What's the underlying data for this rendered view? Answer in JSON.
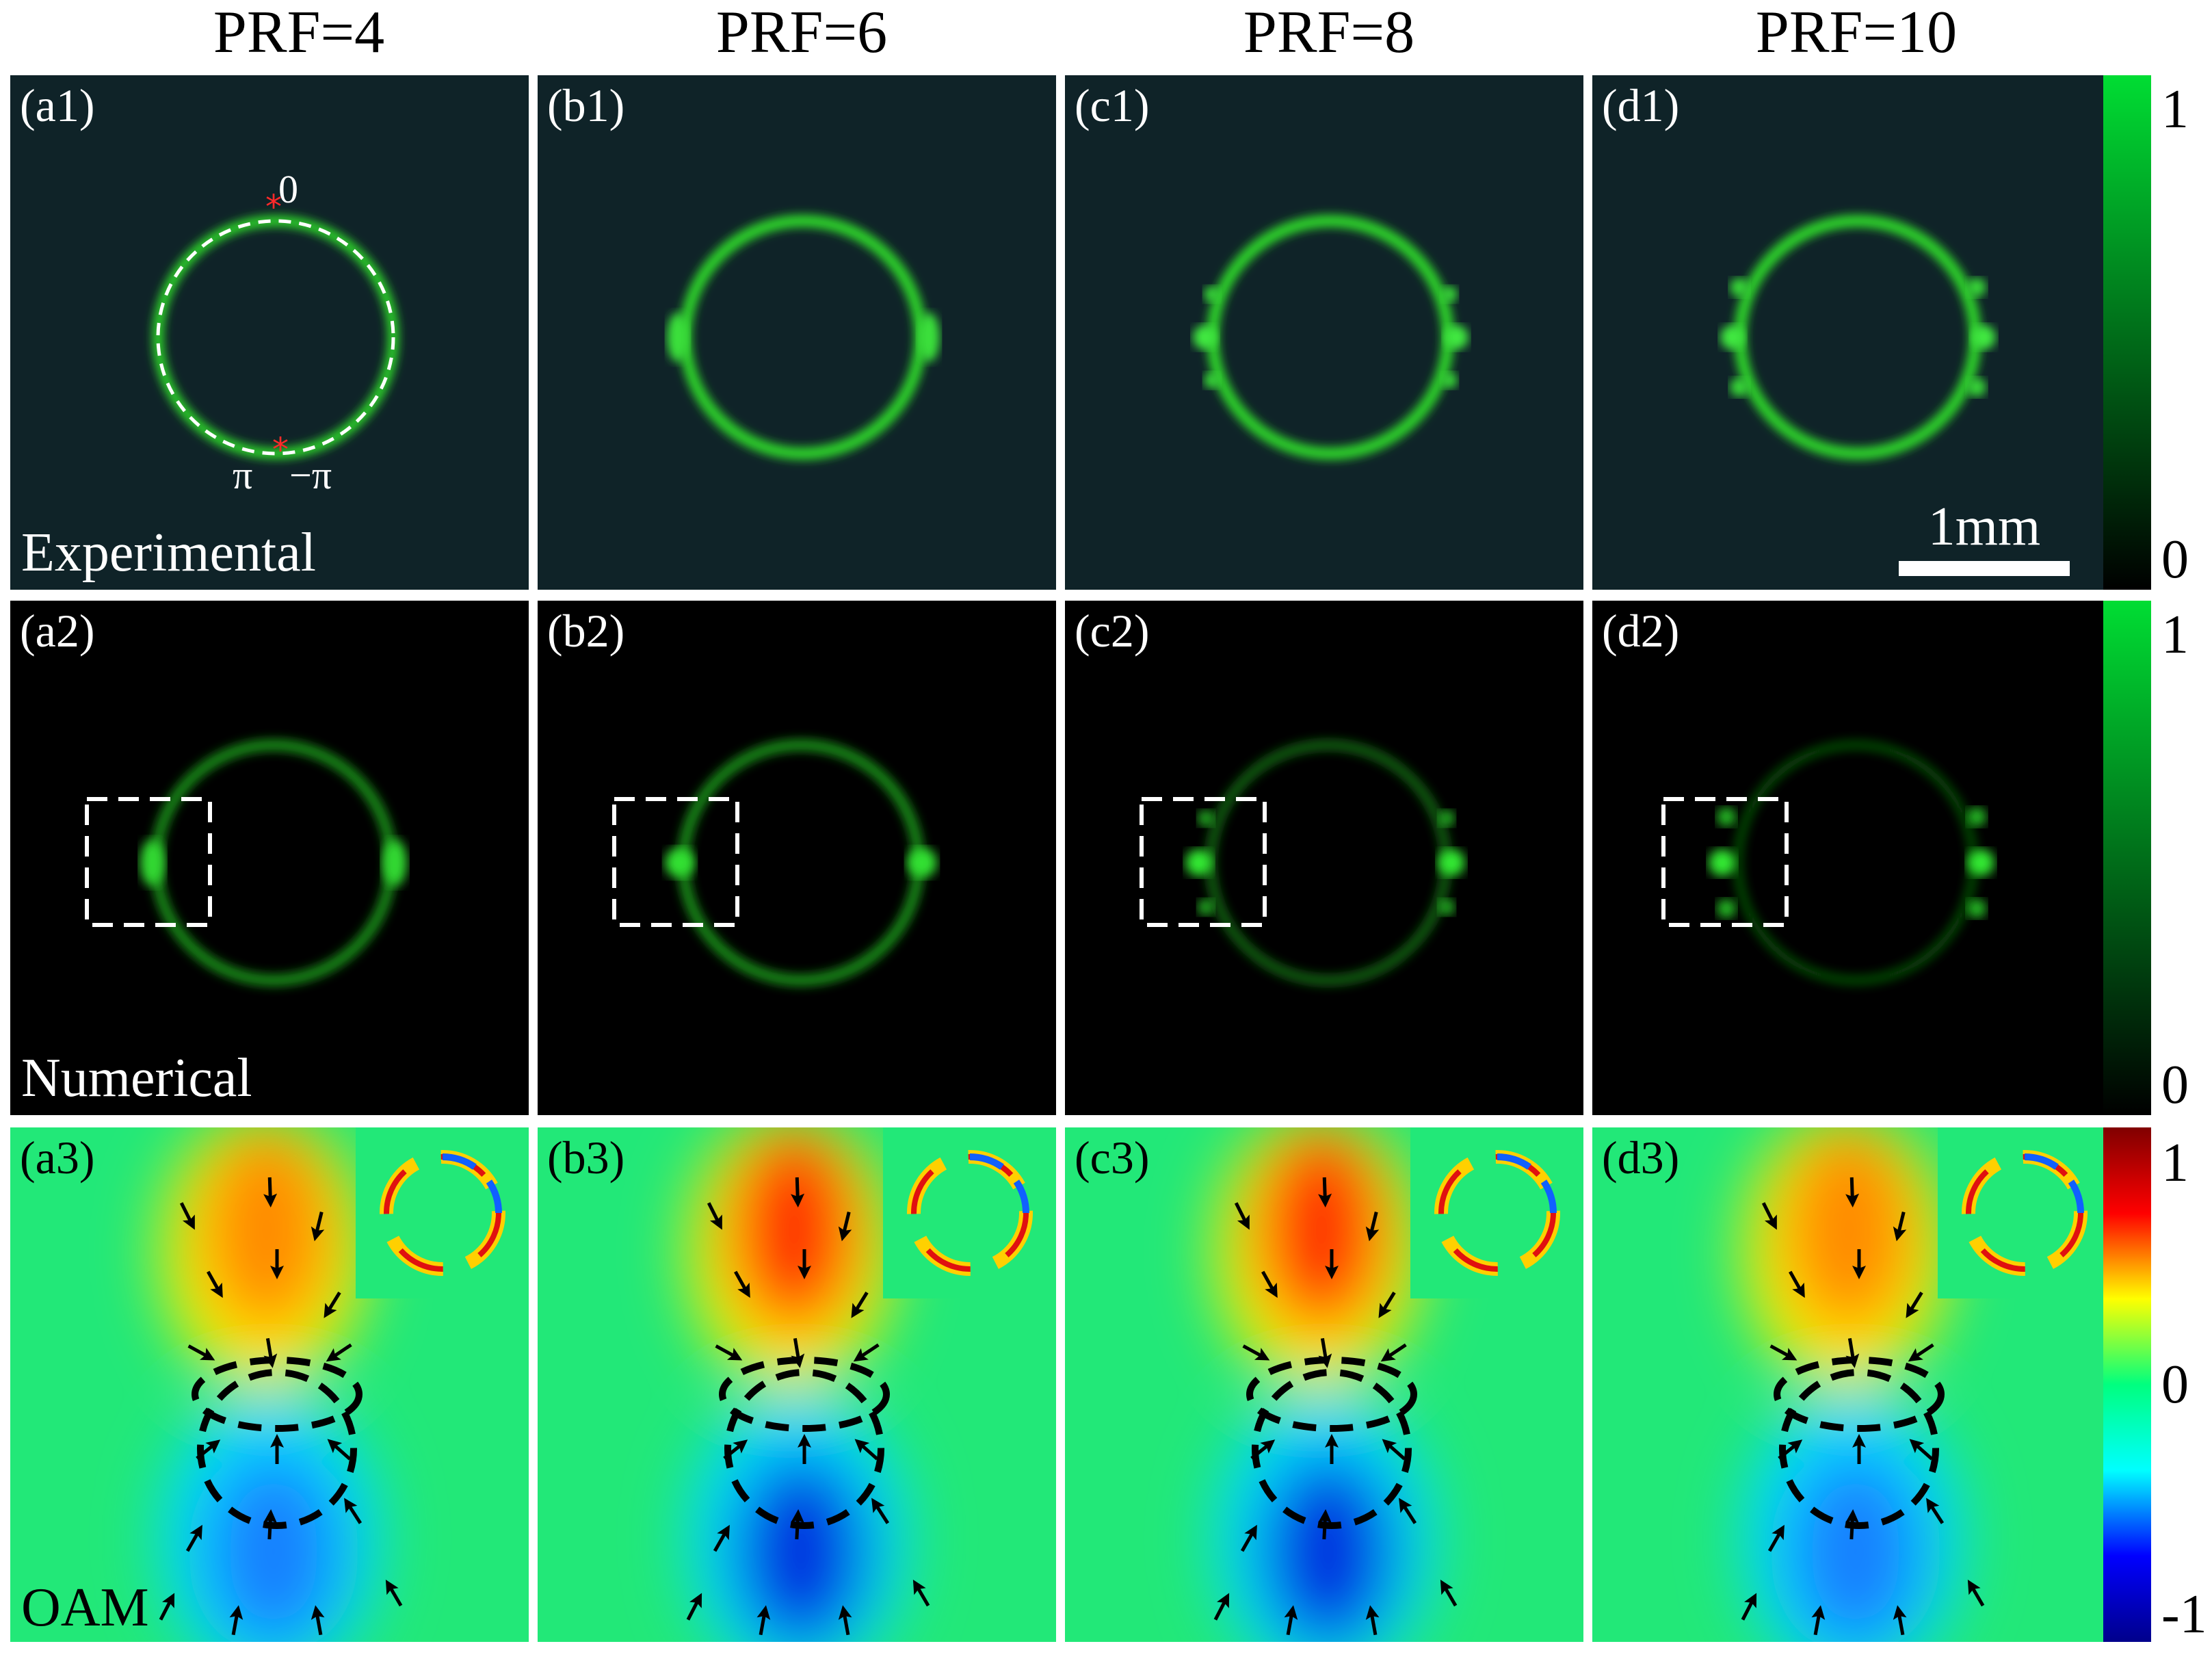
{
  "columns": [
    {
      "title": "PRF=4"
    },
    {
      "title": "PRF=6"
    },
    {
      "title": "PRF=8"
    },
    {
      "title": "PRF=10"
    }
  ],
  "rows": [
    {
      "label": "Experimental",
      "panels": [
        "(a1)",
        "(b1)",
        "(c1)",
        "(d1)"
      ],
      "colormap": "black-green"
    },
    {
      "label": "Numerical",
      "panels": [
        "(a2)",
        "(b2)",
        "(c2)",
        "(d2)"
      ],
      "colormap": "black-green"
    },
    {
      "label": "OAM",
      "panels": [
        "(a3)",
        "(b3)",
        "(c3)",
        "(d3)"
      ],
      "colormap": "jet"
    }
  ],
  "annotations": {
    "phase_top": "0",
    "phase_left": "π",
    "phase_right": "−π"
  },
  "scale_bar": {
    "label": "1mm"
  },
  "colorbars": [
    {
      "max": "1",
      "min": "0",
      "colors": [
        "#00dd33",
        "#000000"
      ]
    },
    {
      "max": "1",
      "min": "0",
      "colors": [
        "#00dd33",
        "#000000"
      ]
    },
    {
      "max": "1",
      "mid": "0",
      "min": "-1",
      "colors": [
        "#800000",
        "#ff0000",
        "#ffff00",
        "#00ff7f",
        "#00ffff",
        "#0000ff",
        "#00008b"
      ]
    }
  ],
  "colors": {
    "ring": "#2fd82a",
    "exp_bg": "#0f2328",
    "num_bg": "#000000",
    "oam_bg": "#22e878"
  }
}
